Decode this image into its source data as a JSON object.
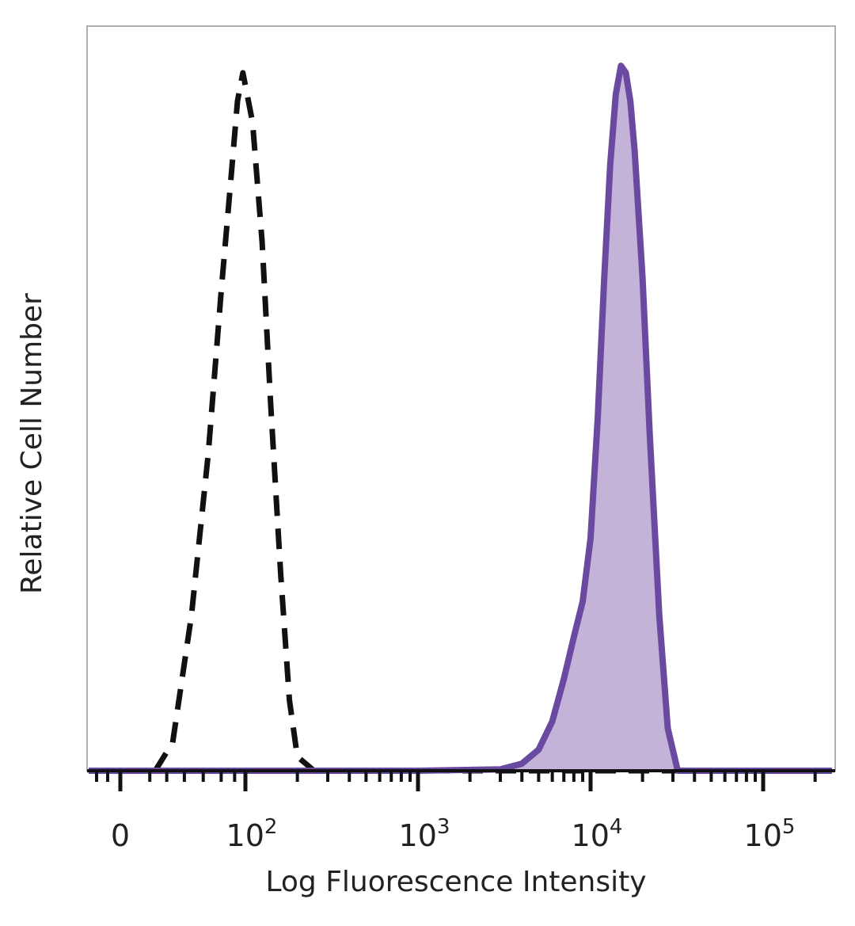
{
  "chart_data": {
    "type": "histogram",
    "title": "",
    "xlabel": "Log Fluorescence Intensity",
    "ylabel": "Relative Cell Number",
    "x_scale": "biexponential",
    "xlim": [
      -20,
      250000
    ],
    "ylim": [
      0,
      1.0
    ],
    "grid": false,
    "legend": "none",
    "x_ticks": [
      {
        "value": 0,
        "base": "0",
        "exp": ""
      },
      {
        "value": 100,
        "base": "10",
        "exp": "2"
      },
      {
        "value": 1000,
        "base": "10",
        "exp": "3"
      },
      {
        "value": 10000,
        "base": "10",
        "exp": "4"
      },
      {
        "value": 100000,
        "base": "10",
        "exp": "5"
      }
    ],
    "series": [
      {
        "style": "dashed",
        "fill": "none",
        "color": "#111111",
        "x": [
          -20,
          10,
          18,
          30,
          45,
          60,
          75,
          85,
          95,
          110,
          125,
          140,
          160,
          180,
          200,
          250,
          400,
          1000,
          5000,
          100000,
          250000
        ],
        "y": [
          0.0,
          0.0,
          0.04,
          0.22,
          0.45,
          0.68,
          0.85,
          0.95,
          0.99,
          0.92,
          0.75,
          0.52,
          0.28,
          0.1,
          0.02,
          0.0,
          0.0,
          0.0,
          0.0,
          0.0,
          0.0
        ]
      },
      {
        "style": "solid",
        "fill": "#c4b3d9",
        "color": "#6a4aa0",
        "x": [
          -20,
          1000,
          3000,
          4000,
          5000,
          6000,
          7000,
          8000,
          9000,
          10000,
          11000,
          12000,
          13000,
          14000,
          15000,
          16000,
          17000,
          18000,
          20000,
          22000,
          25000,
          28000,
          32000,
          100000,
          250000
        ],
        "y": [
          0.0,
          0.0,
          0.002,
          0.01,
          0.03,
          0.07,
          0.13,
          0.19,
          0.24,
          0.33,
          0.5,
          0.7,
          0.86,
          0.96,
          1.0,
          0.99,
          0.95,
          0.88,
          0.7,
          0.48,
          0.22,
          0.06,
          0.0,
          0.0,
          0.0
        ]
      }
    ],
    "colors": {
      "frame": "#b0b0b0",
      "axis": "#111111",
      "tick_text": "#222222"
    }
  }
}
